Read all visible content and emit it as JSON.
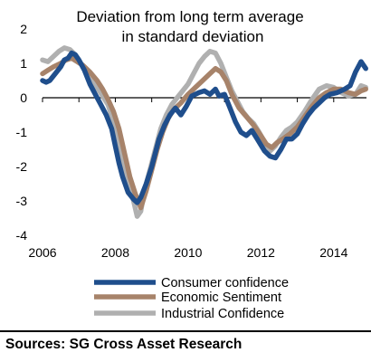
{
  "chart_data": {
    "type": "line",
    "title": "Deviation from long term average",
    "subtitle": "in standard deviation",
    "xlabel": "",
    "ylabel": "",
    "xlim": [
      2006.0,
      2014.9
    ],
    "ylim": [
      -4,
      2
    ],
    "yticks": [
      2,
      1,
      0,
      -1,
      -2,
      -3,
      -4
    ],
    "xticks": [
      2006,
      2008,
      2010,
      2012,
      2014
    ],
    "xtick_labels": [
      "2006",
      "2008",
      "2010",
      "2012",
      "2014"
    ],
    "ytick_labels": [
      "2",
      "1",
      "0",
      "-1",
      "-2",
      "-3",
      "-4"
    ],
    "grid": false,
    "legend_position": "bottom",
    "series": [
      {
        "name": "Consumer confidence",
        "color": "#1f4e8c",
        "points": [
          [
            2006.0,
            0.5
          ],
          [
            2006.1,
            0.45
          ],
          [
            2006.2,
            0.5
          ],
          [
            2006.35,
            0.7
          ],
          [
            2006.5,
            0.9
          ],
          [
            2006.6,
            1.1
          ],
          [
            2006.7,
            1.15
          ],
          [
            2006.8,
            1.3
          ],
          [
            2006.9,
            1.25
          ],
          [
            2007.0,
            1.1
          ],
          [
            2007.15,
            0.8
          ],
          [
            2007.3,
            0.4
          ],
          [
            2007.45,
            0.1
          ],
          [
            2007.6,
            -0.2
          ],
          [
            2007.75,
            -0.5
          ],
          [
            2007.9,
            -0.9
          ],
          [
            2008.0,
            -1.4
          ],
          [
            2008.1,
            -1.9
          ],
          [
            2008.2,
            -2.3
          ],
          [
            2008.35,
            -2.75
          ],
          [
            2008.5,
            -2.95
          ],
          [
            2008.6,
            -3.05
          ],
          [
            2008.7,
            -2.9
          ],
          [
            2008.85,
            -2.5
          ],
          [
            2009.0,
            -2.0
          ],
          [
            2009.1,
            -1.6
          ],
          [
            2009.2,
            -1.2
          ],
          [
            2009.35,
            -0.8
          ],
          [
            2009.5,
            -0.5
          ],
          [
            2009.65,
            -0.3
          ],
          [
            2009.8,
            -0.5
          ],
          [
            2009.95,
            -0.25
          ],
          [
            2010.1,
            0.05
          ],
          [
            2010.3,
            0.15
          ],
          [
            2010.45,
            0.2
          ],
          [
            2010.6,
            0.1
          ],
          [
            2010.75,
            0.25
          ],
          [
            2010.85,
            0.05
          ],
          [
            2011.0,
            0.1
          ],
          [
            2011.15,
            -0.3
          ],
          [
            2011.3,
            -0.7
          ],
          [
            2011.45,
            -1.0
          ],
          [
            2011.6,
            -1.1
          ],
          [
            2011.75,
            -0.95
          ],
          [
            2011.9,
            -1.2
          ],
          [
            2012.1,
            -1.55
          ],
          [
            2012.25,
            -1.7
          ],
          [
            2012.4,
            -1.75
          ],
          [
            2012.55,
            -1.5
          ],
          [
            2012.7,
            -1.2
          ],
          [
            2012.85,
            -1.2
          ],
          [
            2013.0,
            -1.05
          ],
          [
            2013.15,
            -0.75
          ],
          [
            2013.3,
            -0.5
          ],
          [
            2013.45,
            -0.3
          ],
          [
            2013.6,
            -0.15
          ],
          [
            2013.75,
            0.0
          ],
          [
            2013.9,
            0.1
          ],
          [
            2014.1,
            0.15
          ],
          [
            2014.3,
            0.25
          ],
          [
            2014.45,
            0.35
          ],
          [
            2014.6,
            0.75
          ],
          [
            2014.75,
            1.05
          ],
          [
            2014.88,
            0.85
          ]
        ]
      },
      {
        "name": "Economic Sentiment",
        "color": "#a7836a",
        "points": [
          [
            2006.0,
            0.7
          ],
          [
            2006.15,
            0.8
          ],
          [
            2006.3,
            0.9
          ],
          [
            2006.5,
            1.0
          ],
          [
            2006.65,
            1.1
          ],
          [
            2006.8,
            1.15
          ],
          [
            2006.95,
            1.05
          ],
          [
            2007.1,
            0.95
          ],
          [
            2007.3,
            0.75
          ],
          [
            2007.5,
            0.5
          ],
          [
            2007.65,
            0.25
          ],
          [
            2007.8,
            -0.05
          ],
          [
            2007.95,
            -0.4
          ],
          [
            2008.1,
            -0.9
          ],
          [
            2008.25,
            -1.6
          ],
          [
            2008.4,
            -2.3
          ],
          [
            2008.55,
            -2.8
          ],
          [
            2008.7,
            -3.2
          ],
          [
            2008.85,
            -2.7
          ],
          [
            2009.0,
            -2.1
          ],
          [
            2009.15,
            -1.5
          ],
          [
            2009.3,
            -1.0
          ],
          [
            2009.45,
            -0.6
          ],
          [
            2009.6,
            -0.35
          ],
          [
            2009.8,
            -0.15
          ],
          [
            2010.0,
            0.1
          ],
          [
            2010.2,
            0.3
          ],
          [
            2010.4,
            0.5
          ],
          [
            2010.6,
            0.7
          ],
          [
            2010.75,
            0.85
          ],
          [
            2010.9,
            0.75
          ],
          [
            2011.05,
            0.5
          ],
          [
            2011.2,
            0.1
          ],
          [
            2011.4,
            -0.3
          ],
          [
            2011.6,
            -0.55
          ],
          [
            2011.8,
            -0.8
          ],
          [
            2012.0,
            -1.1
          ],
          [
            2012.15,
            -1.35
          ],
          [
            2012.3,
            -1.45
          ],
          [
            2012.45,
            -1.3
          ],
          [
            2012.6,
            -1.2
          ],
          [
            2012.8,
            -1.05
          ],
          [
            2013.0,
            -0.85
          ],
          [
            2013.2,
            -0.55
          ],
          [
            2013.4,
            -0.25
          ],
          [
            2013.6,
            0.0
          ],
          [
            2013.8,
            0.15
          ],
          [
            2014.0,
            0.25
          ],
          [
            2014.2,
            0.25
          ],
          [
            2014.4,
            0.15
          ],
          [
            2014.6,
            0.1
          ],
          [
            2014.75,
            0.2
          ],
          [
            2014.88,
            0.25
          ]
        ]
      },
      {
        "name": "Industrial Confidence",
        "color": "#b0b0b0",
        "points": [
          [
            2006.0,
            1.1
          ],
          [
            2006.15,
            1.05
          ],
          [
            2006.3,
            1.2
          ],
          [
            2006.45,
            1.35
          ],
          [
            2006.6,
            1.45
          ],
          [
            2006.75,
            1.4
          ],
          [
            2006.9,
            1.25
          ],
          [
            2007.05,
            1.0
          ],
          [
            2007.2,
            0.85
          ],
          [
            2007.35,
            0.55
          ],
          [
            2007.5,
            0.3
          ],
          [
            2007.65,
            0.05
          ],
          [
            2007.8,
            -0.2
          ],
          [
            2007.95,
            -0.7
          ],
          [
            2008.1,
            -1.3
          ],
          [
            2008.25,
            -2.0
          ],
          [
            2008.4,
            -2.6
          ],
          [
            2008.5,
            -3.0
          ],
          [
            2008.6,
            -3.45
          ],
          [
            2008.7,
            -3.3
          ],
          [
            2008.8,
            -2.7
          ],
          [
            2008.95,
            -2.1
          ],
          [
            2009.1,
            -1.5
          ],
          [
            2009.25,
            -0.9
          ],
          [
            2009.4,
            -0.5
          ],
          [
            2009.55,
            -0.2
          ],
          [
            2009.7,
            0.0
          ],
          [
            2009.85,
            0.2
          ],
          [
            2010.0,
            0.4
          ],
          [
            2010.15,
            0.7
          ],
          [
            2010.3,
            1.0
          ],
          [
            2010.45,
            1.2
          ],
          [
            2010.6,
            1.35
          ],
          [
            2010.75,
            1.3
          ],
          [
            2010.9,
            1.0
          ],
          [
            2011.05,
            0.6
          ],
          [
            2011.2,
            0.2
          ],
          [
            2011.35,
            -0.1
          ],
          [
            2011.5,
            -0.4
          ],
          [
            2011.65,
            -0.6
          ],
          [
            2011.8,
            -0.75
          ],
          [
            2011.95,
            -1.0
          ],
          [
            2012.1,
            -1.3
          ],
          [
            2012.25,
            -1.55
          ],
          [
            2012.4,
            -1.4
          ],
          [
            2012.55,
            -1.15
          ],
          [
            2012.7,
            -0.95
          ],
          [
            2012.85,
            -0.85
          ],
          [
            2013.0,
            -0.7
          ],
          [
            2013.2,
            -0.4
          ],
          [
            2013.4,
            -0.05
          ],
          [
            2013.6,
            0.25
          ],
          [
            2013.8,
            0.35
          ],
          [
            2014.0,
            0.3
          ],
          [
            2014.2,
            0.15
          ],
          [
            2014.4,
            0.05
          ],
          [
            2014.6,
            0.1
          ],
          [
            2014.75,
            0.35
          ],
          [
            2014.88,
            0.3
          ]
        ]
      }
    ]
  },
  "source_text": "Sources: SG Cross Asset Research"
}
